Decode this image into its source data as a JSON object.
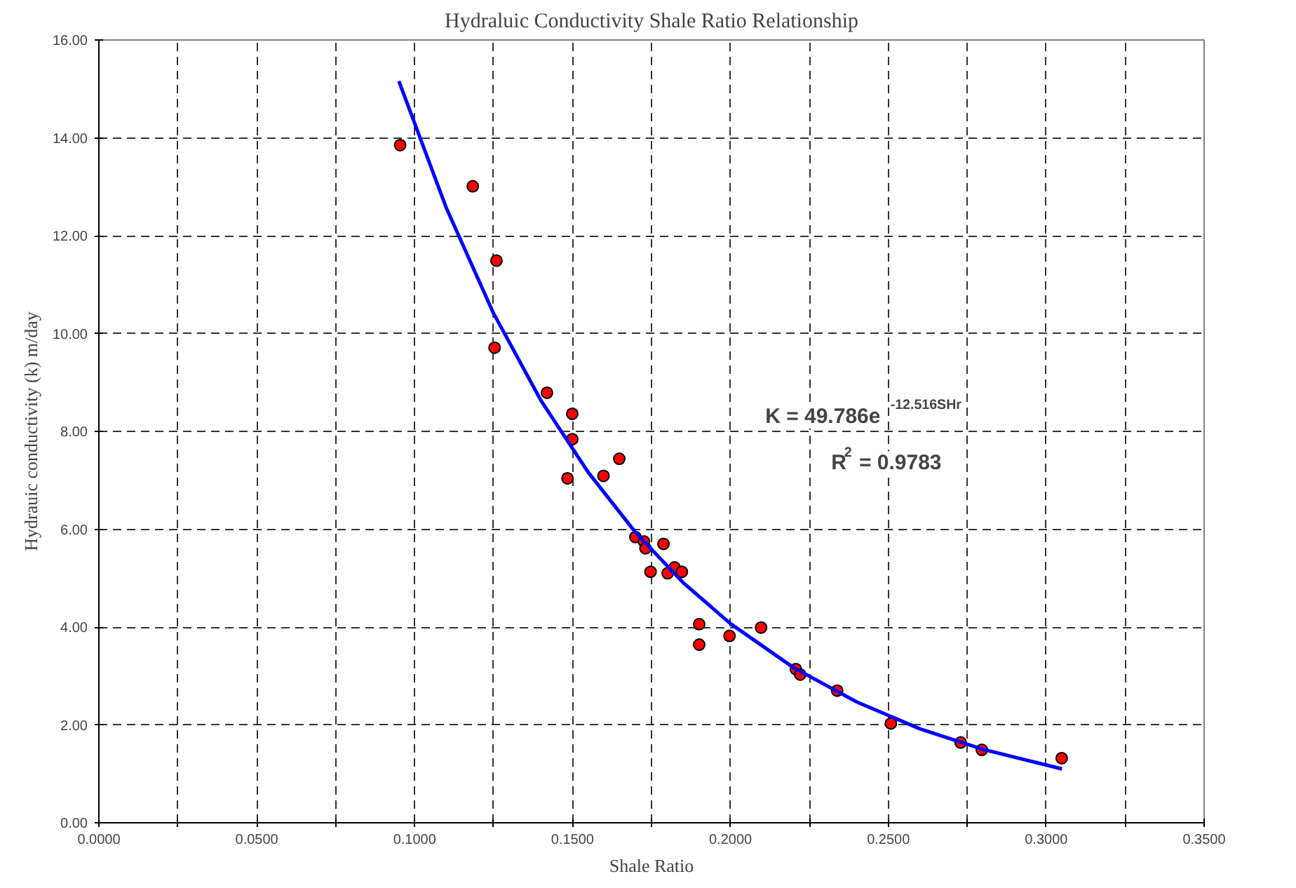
{
  "chart_data": {
    "type": "scatter",
    "title": "Hydraluic Conductivity Shale Ratio Relationship",
    "xlabel": "Shale Ratio",
    "ylabel": "Hydrauic conductivity (k) m/day",
    "x": [
      0.0954,
      0.1184,
      0.1259,
      0.1253,
      0.1419,
      0.1499,
      0.1499,
      0.1484,
      0.1598,
      0.1648,
      0.1699,
      0.1726,
      0.1731,
      0.1788,
      0.1747,
      0.1801,
      0.1823,
      0.1846,
      0.1901,
      0.1901,
      0.1997,
      0.2097,
      0.2207,
      0.2221,
      0.2338,
      0.2508,
      0.2729,
      0.2796,
      0.3049
    ],
    "series": [
      {
        "color": "#ff0000",
        "marker": "circle",
        "values": [
          13.85,
          13.01,
          11.49,
          9.71,
          8.79,
          8.36,
          7.84,
          7.04,
          7.09,
          7.44,
          5.84,
          5.75,
          5.61,
          5.7,
          5.13,
          5.1,
          5.22,
          5.13,
          4.06,
          3.64,
          3.82,
          3.99,
          3.14,
          3.03,
          2.7,
          2.03,
          1.64,
          1.49,
          1.32
        ]
      },
      {
        "type": "line",
        "color": "#0000ff",
        "marker": "none",
        "line_style": "solid",
        "x": [
          0.095,
          0.11,
          0.125,
          0.14,
          0.155,
          0.17,
          0.185,
          0.2,
          0.22,
          0.24,
          0.26,
          0.28,
          0.305
        ],
        "values": [
          15.16,
          12.57,
          10.41,
          8.63,
          7.16,
          5.93,
          4.91,
          4.07,
          3.17,
          2.47,
          1.92,
          1.5,
          1.1
        ]
      }
    ],
    "annotations": [
      "K = 49.786e$^{-12.516SHr}$",
      "R$^{2}$ = 0.9783"
    ],
    "xlim": [
      0,
      0.35
    ],
    "xticks": [
      {
        "value": 0,
        "label": "0.0000"
      },
      {
        "value": 0.025,
        "label": null
      },
      {
        "value": 0.05,
        "label": "0.0500"
      },
      {
        "value": 0.075,
        "label": null
      },
      {
        "value": 0.1,
        "label": "0.1000"
      },
      {
        "value": 0.125,
        "label": null
      },
      {
        "value": 0.15,
        "label": "0.1500"
      },
      {
        "value": 0.175,
        "label": null
      },
      {
        "value": 0.2,
        "label": "0.2000"
      },
      {
        "value": 0.225,
        "label": null
      },
      {
        "value": 0.25,
        "label": "0.2500"
      },
      {
        "value": 0.275,
        "label": null
      },
      {
        "value": 0.3,
        "label": "0.3000"
      },
      {
        "value": 0.325,
        "label": null
      },
      {
        "value": 0.35,
        "label": "0.3500"
      }
    ],
    "ylim": [
      0,
      16
    ],
    "yticks": [
      {
        "value": 0,
        "label": "0.00"
      },
      {
        "value": 2,
        "label": "2.00"
      },
      {
        "value": 4,
        "label": "4.00"
      },
      {
        "value": 6,
        "label": "6.00"
      },
      {
        "value": 8,
        "label": "8.00"
      },
      {
        "value": 10,
        "label": "10.00"
      },
      {
        "value": 12,
        "label": "12.00"
      },
      {
        "value": 14,
        "label": "14.00"
      },
      {
        "value": 16,
        "label": "16.00"
      }
    ],
    "grid": true
  }
}
